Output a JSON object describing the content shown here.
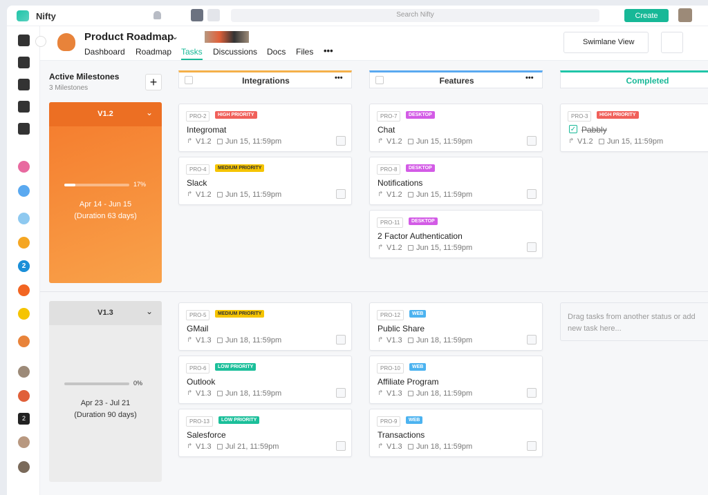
{
  "app": {
    "name": "Nifty",
    "search": "Search Nifty",
    "create": "Create"
  },
  "sidebar": {
    "badges": [
      "2",
      "2"
    ]
  },
  "project": {
    "title": "Product Roadmap",
    "tabs": [
      "Dashboard",
      "Roadmap",
      "Tasks",
      "Discussions",
      "Docs",
      "Files"
    ],
    "active_tab": 2,
    "view": "Swimlane View"
  },
  "milestones_header": {
    "title": "Active Milestones",
    "count": "3 Milestones"
  },
  "columns": [
    {
      "name": "Integrations",
      "color": "#f5b04a"
    },
    {
      "name": "Features",
      "color": "#5aa9f0"
    },
    {
      "name": "Completed",
      "color": "#20c5a8"
    }
  ],
  "lanes": [
    {
      "milestone": {
        "name": "V1.2",
        "progress": 17,
        "progress_label": "17%",
        "dates": "Apr 14 - Jun 15",
        "duration": "(Duration 63 days)"
      },
      "cells": [
        [
          {
            "id": "PRO-2",
            "tag": "HIGH PRIORITY",
            "tag_color": "#f0605a",
            "title": "Integromat",
            "version": "V1.2",
            "due": "Jun 15, 11:59pm"
          },
          {
            "id": "PRO-4",
            "tag": "MEDIUM PRIORITY",
            "tag_color": "#f5c400",
            "title": "Slack",
            "version": "V1.2",
            "due": "Jun 15, 11:59pm"
          }
        ],
        [
          {
            "id": "PRO-7",
            "tag": "DESKTOP",
            "tag_color": "#d35be6",
            "title": "Chat",
            "version": "V1.2",
            "due": "Jun 15, 11:59pm"
          },
          {
            "id": "PRO-8",
            "tag": "DESKTOP",
            "tag_color": "#d35be6",
            "title": "Notifications",
            "version": "V1.2",
            "due": "Jun 15, 11:59pm"
          },
          {
            "id": "PRO-11",
            "tag": "DESKTOP",
            "tag_color": "#d35be6",
            "title": "2 Factor Authentication",
            "version": "V1.2",
            "due": "Jun 15, 11:59pm"
          }
        ],
        [
          {
            "id": "PRO-3",
            "tag": "HIGH PRIORITY",
            "tag_color": "#f0605a",
            "title": "Pabbly",
            "version": "V1.2",
            "due": "Jun 15, 11:59pm",
            "done": true
          }
        ]
      ]
    },
    {
      "milestone": {
        "name": "V1.3",
        "progress": 0,
        "progress_label": "0%",
        "dates": "Apr 23 - Jul 21",
        "duration": "(Duration 90 days)"
      },
      "cells": [
        [
          {
            "id": "PRO-5",
            "tag": "MEDIUM PRIORITY",
            "tag_color": "#f5c400",
            "title": "GMail",
            "version": "V1.3",
            "due": "Jun 18, 11:59pm"
          },
          {
            "id": "PRO-6",
            "tag": "LOW PRIORITY",
            "tag_color": "#1bbf9a",
            "title": "Outlook",
            "version": "V1.3",
            "due": "Jun 18, 11:59pm"
          },
          {
            "id": "PRO-13",
            "tag": "LOW PRIORITY",
            "tag_color": "#1bbf9a",
            "title": "Salesforce",
            "version": "V1.3",
            "due": "Jul 21, 11:59pm"
          }
        ],
        [
          {
            "id": "PRO-12",
            "tag": "WEB",
            "tag_color": "#4cb3f0",
            "title": "Public Share",
            "version": "V1.3",
            "due": "Jun 18, 11:59pm"
          },
          {
            "id": "PRO-10",
            "tag": "WEB",
            "tag_color": "#4cb3f0",
            "title": "Affiliate Program",
            "version": "V1.3",
            "due": "Jun 18, 11:59pm"
          },
          {
            "id": "PRO-9",
            "tag": "WEB",
            "tag_color": "#4cb3f0",
            "title": "Transactions",
            "version": "V1.3",
            "due": "Jun 18, 11:59pm"
          }
        ],
        []
      ],
      "placeholder": "Drag tasks from another status or add new task here..."
    }
  ]
}
